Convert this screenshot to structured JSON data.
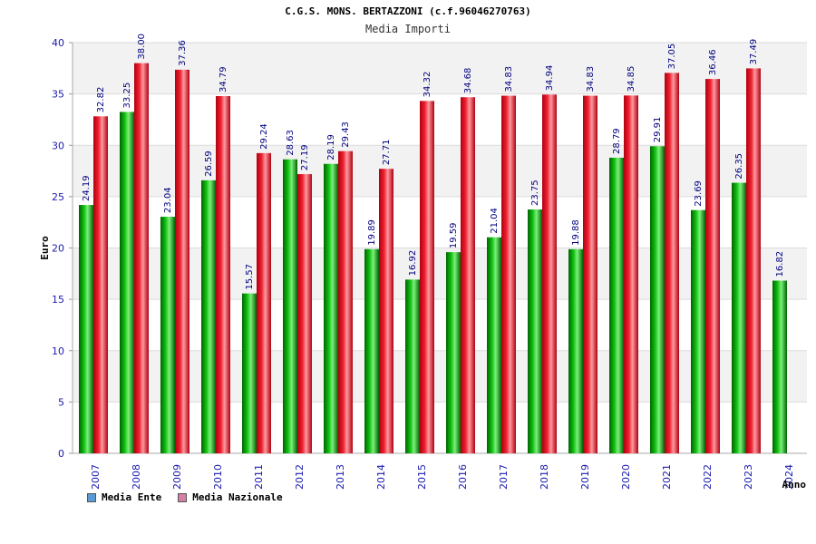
{
  "chart_data": {
    "type": "bar",
    "title": "C.G.S. MONS. BERTAZZONI (c.f.96046270763)",
    "subtitle": "Media Importi",
    "xlabel": "Anno",
    "ylabel": "Euro",
    "ylim": [
      0,
      40
    ],
    "yticks": [
      0,
      5,
      10,
      15,
      20,
      25,
      30,
      35,
      40
    ],
    "categories": [
      "2007",
      "2008",
      "2009",
      "2010",
      "2011",
      "2012",
      "2013",
      "2014",
      "2015",
      "2016",
      "2017",
      "2018",
      "2019",
      "2020",
      "2021",
      "2022",
      "2023",
      "2024"
    ],
    "series": [
      {
        "name": "Media Ente",
        "color": "#00b000",
        "legend_color": "#5b9bd5",
        "values": [
          24.19,
          33.25,
          23.04,
          26.59,
          15.57,
          28.63,
          28.19,
          19.89,
          16.92,
          19.59,
          21.04,
          23.75,
          19.88,
          28.79,
          29.91,
          23.69,
          26.35,
          16.82
        ],
        "labels": [
          "24.19",
          "33.25",
          "23.04",
          "26.59",
          "15.57",
          "28.63",
          "28.19",
          "19.89",
          "16.92",
          "19.59",
          "21.04",
          "23.75",
          "19.88",
          "28.79",
          "29.91",
          "23.69",
          "26.35",
          "16.82"
        ]
      },
      {
        "name": "Media Nazionale",
        "color": "#e81c24",
        "legend_color": "#d47fa6",
        "values": [
          32.82,
          38.0,
          37.36,
          34.79,
          29.24,
          27.19,
          29.43,
          27.71,
          34.32,
          34.68,
          34.83,
          34.94,
          34.83,
          34.85,
          37.05,
          36.46,
          37.49,
          null
        ],
        "labels": [
          "32.82",
          "38.00",
          "37.36",
          "34.79",
          "29.24",
          "27.19",
          "29.43",
          "27.71",
          "34.32",
          "34.68",
          "34.83",
          "34.94",
          "34.83",
          "34.85",
          "37.05",
          "36.46",
          "37.49",
          null
        ]
      }
    ],
    "legend_position": "bottom-left"
  }
}
